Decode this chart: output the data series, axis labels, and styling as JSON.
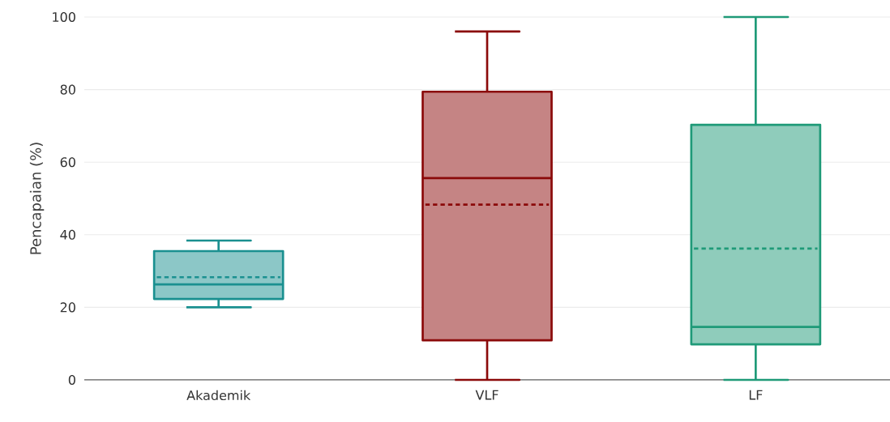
{
  "chart_data": {
    "type": "box",
    "ylabel": "Pencapaian (%)",
    "categories": [
      "Akademik",
      "VLF",
      "LF"
    ],
    "colors": [
      "#1a9090",
      "#8b0a0a",
      "#1f9a78"
    ],
    "boxes": [
      {
        "low": 20,
        "q1": 22.3,
        "median": 26.3,
        "q3": 35.5,
        "high": 38.4,
        "mean": 28.3
      },
      {
        "low": 0,
        "q1": 10.9,
        "median": 55.6,
        "q3": 79.4,
        "high": 96,
        "mean": 48.3
      },
      {
        "low": 0,
        "q1": 9.8,
        "median": 14.6,
        "q3": 70.3,
        "high": 100,
        "mean": 36.2
      }
    ],
    "ylim": [
      0,
      100
    ],
    "yticks": [
      0,
      20,
      40,
      60,
      80,
      100
    ],
    "grid": "y"
  }
}
